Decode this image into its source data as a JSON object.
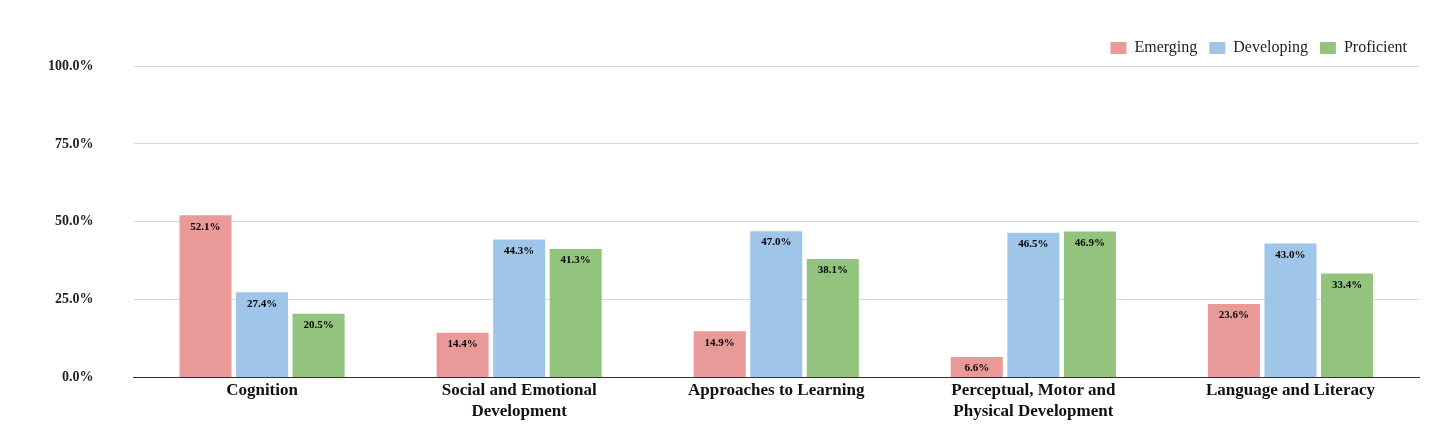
{
  "chart_data": {
    "type": "bar",
    "categories": [
      "Cognition",
      "Social and Emotional Development",
      "Approaches to Learning",
      "Perceptual, Motor and Physical Development",
      "Language and Literacy"
    ],
    "series": [
      {
        "name": "Emerging",
        "color": "#ea9999",
        "values": [
          52.1,
          14.4,
          14.9,
          6.6,
          23.6
        ],
        "value_labels": [
          "52.1%",
          "14.4%",
          "14.9%",
          "6.6%",
          "23.6%"
        ]
      },
      {
        "name": "Developing",
        "color": "#9fc5e8",
        "values": [
          27.4,
          44.3,
          47.0,
          46.5,
          43.0
        ],
        "value_labels": [
          "27.4%",
          "44.3%",
          "47.0%",
          "46.5%",
          "43.0%"
        ]
      },
      {
        "name": "Proficient",
        "color": "#93c47d",
        "values": [
          20.5,
          41.3,
          38.1,
          46.9,
          33.4
        ],
        "value_labels": [
          "20.5%",
          "41.3%",
          "38.1%",
          "46.9%",
          "33.4%"
        ]
      }
    ],
    "ylim": [
      0,
      100
    ],
    "yticks": [
      {
        "value": 0,
        "label": "0.0%"
      },
      {
        "value": 25,
        "label": "25.0%"
      },
      {
        "value": 50,
        "label": "50.0%"
      },
      {
        "value": 75,
        "label": "75.0%"
      },
      {
        "value": 100,
        "label": "100.0%"
      }
    ],
    "grid": "y",
    "legend": "top right"
  }
}
